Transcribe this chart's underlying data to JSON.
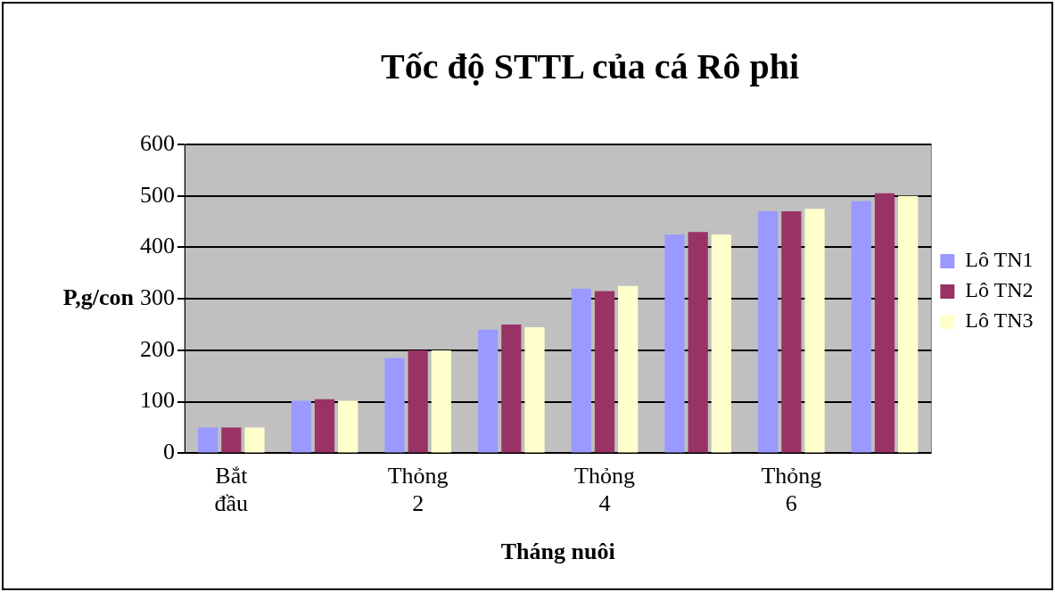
{
  "chart_data": {
    "type": "bar",
    "title": "Tốc độ STTL của cá Rô phi",
    "xlabel": "Tháng nuôi",
    "ylabel": "P,g/con",
    "categories": [
      "Bắt đầu",
      null,
      "Thỏng 2",
      null,
      "Thỏng 4",
      null,
      "Thỏng 6",
      null
    ],
    "series": [
      {
        "name": "Lô TN1",
        "color": "#9999ff",
        "values": [
          50,
          102,
          185,
          240,
          320,
          425,
          470,
          490
        ]
      },
      {
        "name": "Lô TN2",
        "color": "#993366",
        "values": [
          50,
          105,
          200,
          250,
          315,
          430,
          470,
          505
        ]
      },
      {
        "name": "Lô TN3",
        "color": "#ffffcc",
        "values": [
          50,
          102,
          200,
          245,
          325,
          425,
          475,
          500
        ]
      }
    ],
    "ylim": [
      0,
      600
    ],
    "yticks": [
      0,
      100,
      200,
      300,
      400,
      500,
      600
    ],
    "grid": "y",
    "legend": "right"
  }
}
